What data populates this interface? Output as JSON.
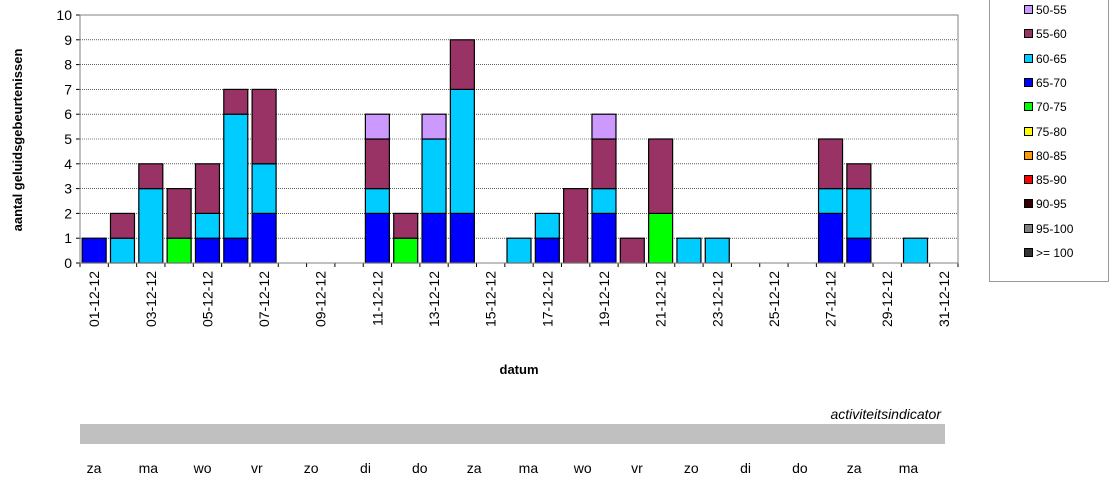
{
  "chart_data": {
    "type": "bar",
    "stacked": true,
    "title": "",
    "xlabel": "datum",
    "ylabel": "aantal geluidsgebeurtenissen",
    "ylim": [
      0,
      10
    ],
    "yticks": [
      "0",
      "1",
      "2",
      "3",
      "4",
      "5",
      "6",
      "7",
      "8",
      "9",
      "10"
    ],
    "grid": true,
    "legend_position": "right",
    "categories": [
      "01-12-12",
      "02-12-12",
      "03-12-12",
      "04-12-12",
      "05-12-12",
      "06-12-12",
      "07-12-12",
      "08-12-12",
      "09-12-12",
      "10-12-12",
      "11-12-12",
      "12-12-12",
      "13-12-12",
      "14-12-12",
      "15-12-12",
      "16-12-12",
      "17-12-12",
      "18-12-12",
      "19-12-12",
      "20-12-12",
      "21-12-12",
      "22-12-12",
      "23-12-12",
      "24-12-12",
      "25-12-12",
      "26-12-12",
      "27-12-12",
      "28-12-12",
      "29-12-12",
      "30-12-12",
      "31-12-12"
    ],
    "xtick_labels": [
      "01-12-12",
      "03-12-12",
      "05-12-12",
      "07-12-12",
      "09-12-12",
      "11-12-12",
      "13-12-12",
      "15-12-12",
      "17-12-12",
      "19-12-12",
      "21-12-12",
      "23-12-12",
      "25-12-12",
      "27-12-12",
      "29-12-12",
      "31-12-12"
    ],
    "series": [
      {
        "name": "65-70",
        "color": "#0000ff",
        "values": [
          1,
          0,
          0,
          0,
          1,
          1,
          2,
          0,
          0,
          0,
          2,
          0,
          2,
          2,
          0,
          0,
          1,
          0,
          2,
          0,
          0,
          0,
          0,
          0,
          0,
          0,
          2,
          1,
          0,
          0,
          0
        ]
      },
      {
        "name": "70-75",
        "color": "#00ff00",
        "values": [
          0,
          0,
          0,
          1,
          0,
          0,
          0,
          0,
          0,
          0,
          0,
          1,
          0,
          0,
          0,
          0,
          0,
          0,
          0,
          0,
          2,
          0,
          0,
          0,
          0,
          0,
          0,
          0,
          0,
          0,
          0
        ]
      },
      {
        "name": "60-65",
        "color": "#00ccff",
        "values": [
          0,
          1,
          3,
          0,
          1,
          5,
          2,
          0,
          0,
          0,
          1,
          0,
          3,
          5,
          0,
          1,
          1,
          0,
          1,
          0,
          0,
          1,
          1,
          0,
          0,
          0,
          1,
          2,
          0,
          1,
          0
        ]
      },
      {
        "name": "55-60",
        "color": "#993366",
        "values": [
          0,
          1,
          1,
          2,
          2,
          1,
          3,
          0,
          0,
          0,
          2,
          1,
          0,
          2,
          0,
          0,
          0,
          3,
          2,
          1,
          3,
          0,
          0,
          0,
          0,
          0,
          2,
          1,
          0,
          0,
          0
        ]
      },
      {
        "name": "50-55",
        "color": "#cc99ff",
        "values": [
          0,
          0,
          0,
          0,
          0,
          0,
          0,
          0,
          0,
          0,
          1,
          0,
          1,
          0,
          0,
          0,
          0,
          0,
          1,
          0,
          0,
          0,
          0,
          0,
          0,
          0,
          0,
          0,
          0,
          0,
          0
        ]
      }
    ]
  },
  "legend": [
    {
      "label": "50-55",
      "color": "#cc99ff"
    },
    {
      "label": "55-60",
      "color": "#993366"
    },
    {
      "label": "60-65",
      "color": "#00ccff"
    },
    {
      "label": "65-70",
      "color": "#0000ff"
    },
    {
      "label": "70-75",
      "color": "#00ff00"
    },
    {
      "label": "75-80",
      "color": "#ffff00"
    },
    {
      "label": "80-85",
      "color": "#ff9900"
    },
    {
      "label": "85-90",
      "color": "#ff0000"
    },
    {
      "label": "90-95",
      "color": "#330000"
    },
    {
      "label": "95-100",
      "color": "#808080"
    },
    {
      "label": ">= 100",
      "color": "#333333"
    }
  ],
  "activity": {
    "label": "activiteitsindicator",
    "days": [
      "za",
      "ma",
      "wo",
      "vr",
      "zo",
      "di",
      "do",
      "za",
      "ma",
      "wo",
      "vr",
      "zo",
      "di",
      "do",
      "za",
      "ma"
    ]
  }
}
